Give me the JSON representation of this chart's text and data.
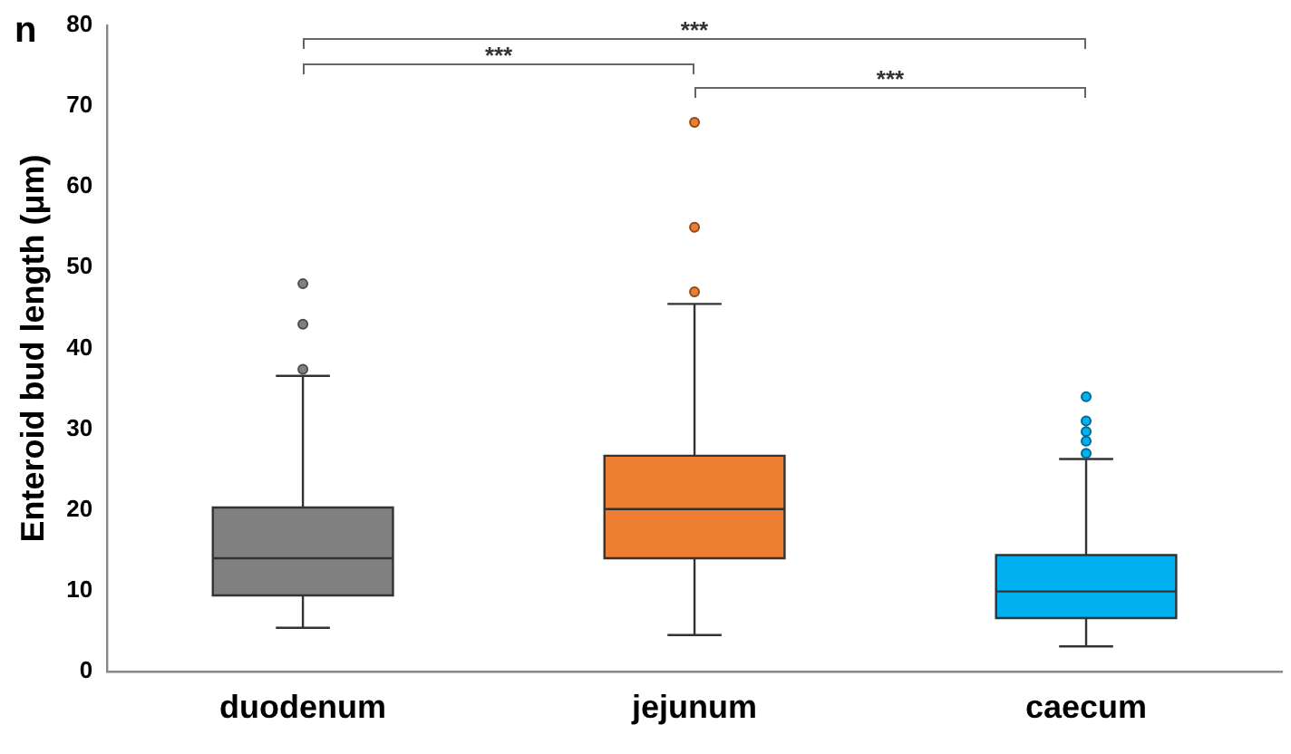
{
  "chart_data": {
    "type": "box",
    "title": "n",
    "ylabel": "Enteroid bud length (μm)",
    "categories": [
      "duodenum",
      "jejunum",
      "caecum"
    ],
    "colors": [
      "#808080",
      "#ed7d31",
      "#00b0f0"
    ],
    "boxes": [
      {
        "low": 5.4,
        "q1": 9.4,
        "median": 14,
        "q3": 20.3,
        "high": 36.6,
        "outliers": [
          37.4,
          43,
          48
        ]
      },
      {
        "low": 4.5,
        "q1": 14,
        "median": 20.1,
        "q3": 26.7,
        "high": 45.5,
        "outliers": [
          47,
          55,
          68
        ]
      },
      {
        "low": 3.1,
        "q1": 6.6,
        "median": 9.9,
        "q3": 14.4,
        "high": 26.3,
        "outliers": [
          27,
          28.5,
          29.7,
          31,
          34
        ]
      }
    ],
    "ylim": [
      0,
      80
    ],
    "yticks": [
      0,
      10,
      20,
      30,
      40,
      50,
      60,
      70,
      80
    ],
    "grid": false,
    "legend": false,
    "annotations": [
      "***",
      "***",
      "***"
    ]
  }
}
